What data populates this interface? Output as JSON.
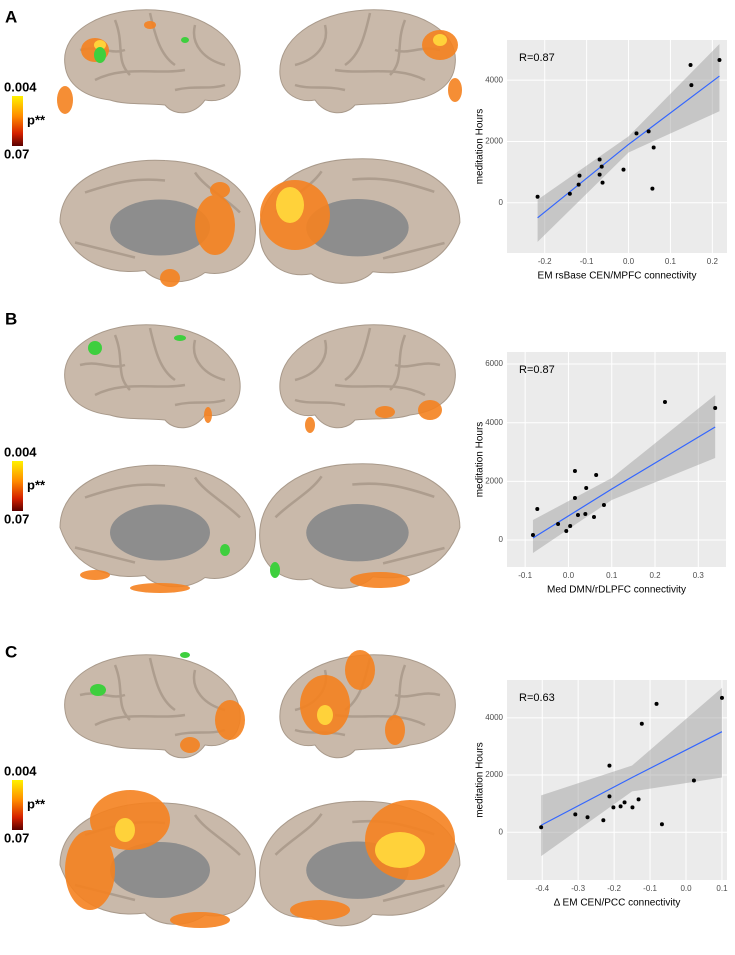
{
  "panels": [
    {
      "label": "A",
      "colorbar": {
        "max": 0.004,
        "label": "p**",
        "min": 0.07
      }
    },
    {
      "label": "B",
      "colorbar": {
        "max": 0.004,
        "label": "p**",
        "min": 0.07
      }
    },
    {
      "label": "C",
      "colorbar": {
        "max": 0.004,
        "label": "p**",
        "min": 0.07
      }
    }
  ],
  "chart_data": [
    {
      "type": "scatter",
      "annotation": "R=0.87",
      "xlabel": "EM rsBase CEN/MPFC connectivity",
      "ylabel": "meditation Hours",
      "x": [
        -0.217,
        -0.14,
        -0.119,
        -0.117,
        -0.069,
        -0.069,
        -0.064,
        -0.062,
        -0.012,
        0.019,
        0.048,
        0.06,
        0.057,
        0.148,
        0.15,
        0.217
      ],
      "y": [
        197,
        295,
        590,
        886,
        918,
        1410,
        1180,
        656,
        1082,
        2263,
        2329,
        1804,
        459,
        4494,
        3838,
        4658
      ],
      "color": "#000000",
      "xlim": [
        -0.29,
        0.235
      ],
      "ylim": [
        -1640,
        5310
      ],
      "xticks": [
        -0.2,
        -0.1,
        {
          "value": 0,
          "label": "0.0"
        },
        0.1,
        0.2
      ],
      "yticks": [
        0,
        2000,
        4000
      ],
      "grid": true,
      "fit": {
        "color": "#3366ff",
        "band_color": "#999999",
        "x": [
          -0.217,
          0,
          0.217
        ],
        "y": [
          -492,
          1902,
          4133
        ],
        "lower": [
          -1279,
          1640,
          2985
        ],
        "upper": [
          98,
          2165,
          5180
        ]
      }
    },
    {
      "type": "scatter",
      "annotation": "R=0.87",
      "xlabel": "Med DMN/rDLPFC connectivity",
      "ylabel": "meditation Hours",
      "x": [
        -0.082,
        -0.072,
        -0.024,
        -0.005,
        0.004,
        0.015,
        0.015,
        0.022,
        0.039,
        0.041,
        0.059,
        0.064,
        0.082,
        0.223,
        0.339
      ],
      "y": [
        170,
        1057,
        546,
        307,
        477,
        1432,
        2353,
        852,
        887,
        1773,
        784,
        2217,
        1194,
        4706,
        4501
      ],
      "color": "#000000",
      "xlim": [
        -0.142,
        0.364
      ],
      "ylim": [
        -920,
        6410
      ],
      "xticks": [
        -0.1,
        {
          "value": 0,
          "label": "0.0"
        },
        0.1,
        0.2,
        0.3
      ],
      "yticks": [
        0,
        2000,
        4000,
        6000
      ],
      "grid": true,
      "fit": {
        "color": "#3366ff",
        "band_color": "#999999",
        "x": [
          -0.082,
          0.1,
          0.339
        ],
        "y": [
          68,
          1740,
          3853
        ],
        "lower": [
          -443,
          1364,
          2796
        ],
        "upper": [
          682,
          2114,
          4945
        ]
      }
    },
    {
      "type": "scatter",
      "annotation": "R=0.63",
      "xlabel": "Δ EM CEN/PCC connectivity",
      "ylabel": "meditation Hours",
      "x": [
        -0.403,
        -0.308,
        -0.274,
        -0.23,
        -0.213,
        -0.213,
        -0.202,
        -0.182,
        -0.171,
        -0.149,
        -0.132,
        -0.123,
        -0.082,
        -0.067,
        0.022,
        0.1
      ],
      "y": [
        174,
        626,
        522,
        418,
        1253,
        2330,
        870,
        905,
        1044,
        870,
        1148,
        3793,
        4489,
        278,
        1810,
        4698
      ],
      "color": "#000000",
      "xlim": [
        -0.498,
        0.114
      ],
      "ylim": [
        -1670,
        5322
      ],
      "xticks": [
        -0.4,
        -0.3,
        -0.2,
        -0.1,
        {
          "value": 0,
          "label": "0.0"
        },
        0.1
      ],
      "yticks": [
        0,
        2000,
        4000
      ],
      "grid": true,
      "fit": {
        "color": "#3366ff",
        "band_color": "#999999",
        "x": [
          -0.403,
          -0.15,
          0.1
        ],
        "y": [
          244,
          1914,
          3515
        ],
        "lower": [
          -835,
          1427,
          1914
        ],
        "upper": [
          1288,
          2332,
          5046
        ]
      }
    }
  ]
}
